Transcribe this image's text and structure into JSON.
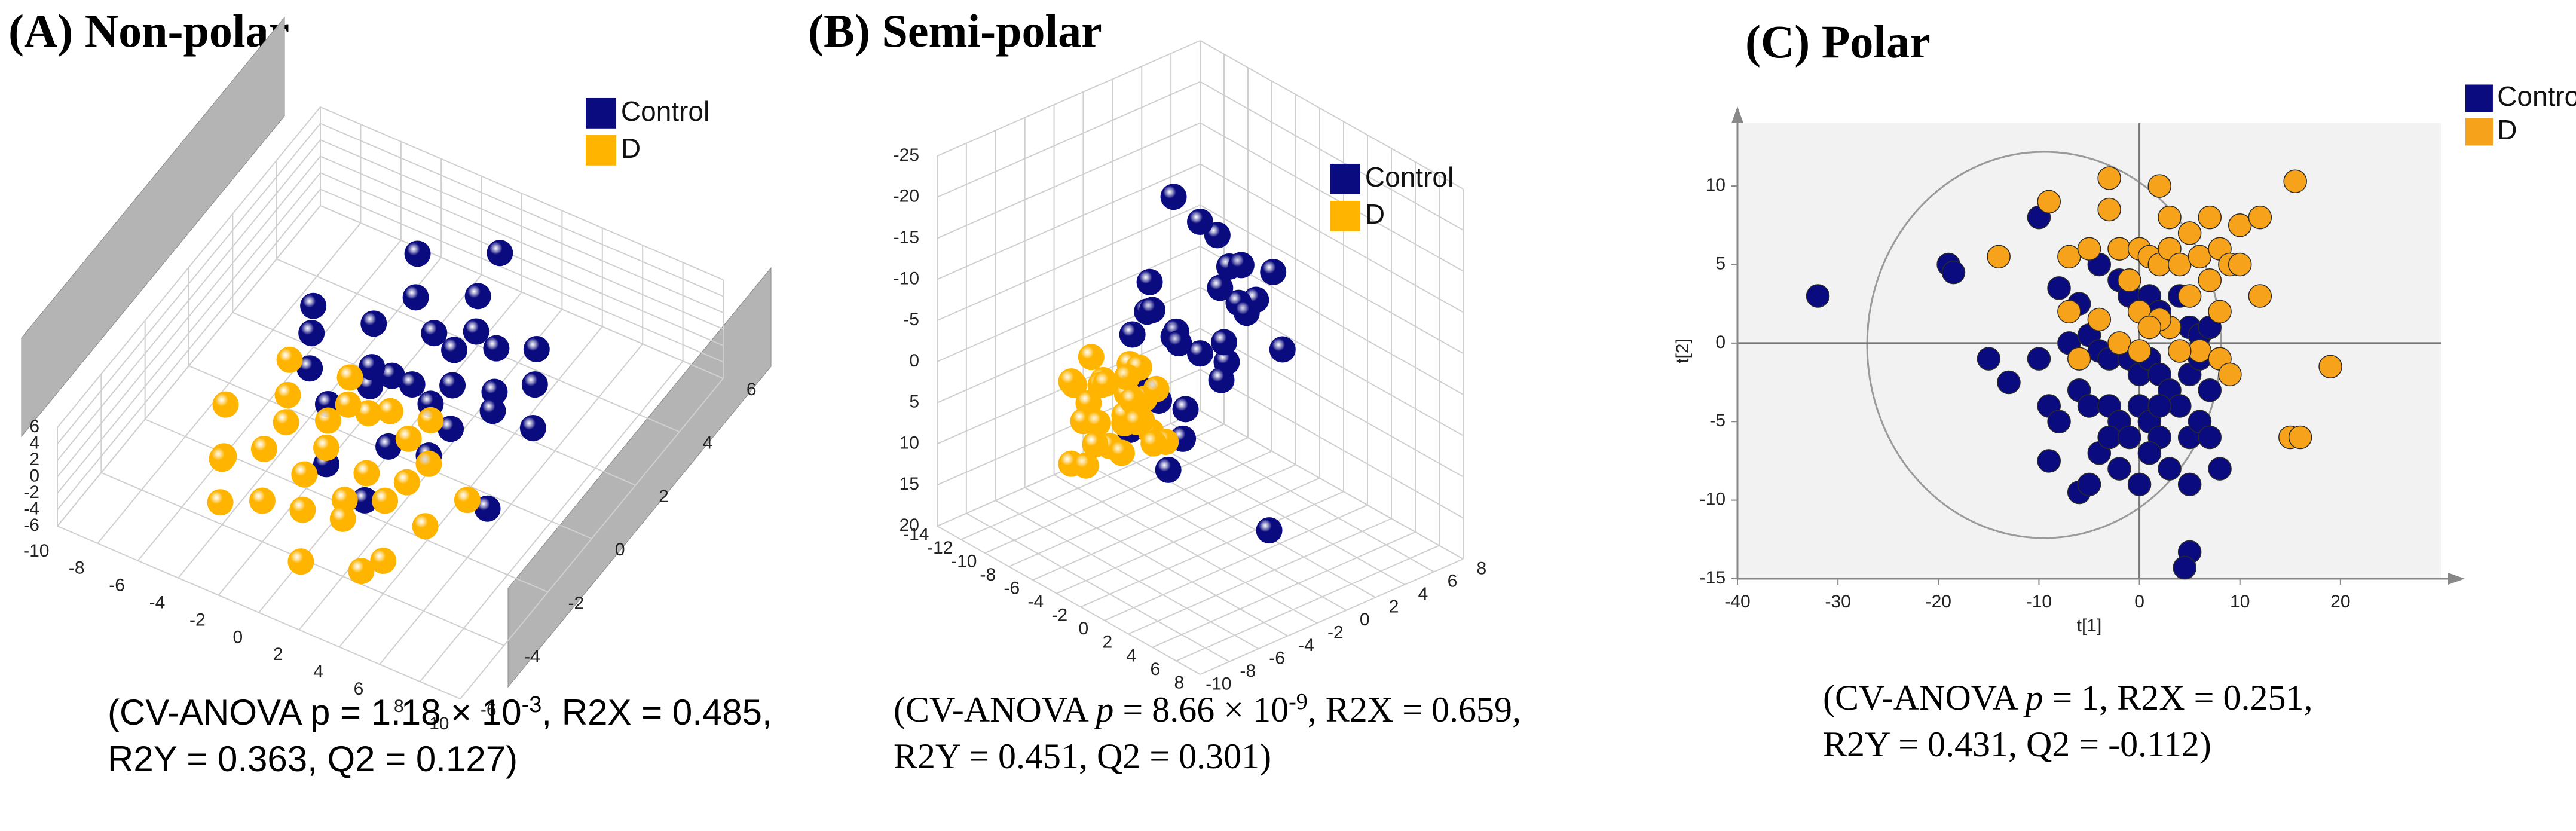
{
  "chart_data": [
    {
      "type": "scatter3d",
      "title": "(A) Non-polar",
      "caption": [
        [
          {
            "text": "(CV-ANOVA p = 1.18 × 10"
          },
          {
            "text": "-3",
            "style": "sup"
          },
          {
            "text": ", R2X = 0.485,"
          }
        ],
        [
          {
            "text": "R2Y = 0.363, Q2 = 0.127)"
          }
        ]
      ],
      "xlim": [
        -10,
        10
      ],
      "xticks": [
        -10,
        -8,
        -6,
        -4,
        -2,
        0,
        2,
        4,
        6,
        8,
        10
      ],
      "ylim": [
        -6,
        6
      ],
      "yticks": [
        -6,
        -4,
        -2,
        0,
        2,
        4,
        6
      ],
      "zlim": [
        -6,
        6
      ],
      "zticks": [
        -6,
        -4,
        -2,
        0,
        2,
        4,
        6
      ],
      "wall_color": "#b4b4b4",
      "series": [
        {
          "name": "Control",
          "color": "#0b0b80",
          "x": [
            -3,
            -2,
            -1,
            0,
            1,
            2,
            3,
            -4,
            -1,
            0,
            2,
            4,
            -2,
            1,
            3,
            -3,
            0,
            2,
            5,
            -5,
            -1,
            1,
            3,
            -2,
            0,
            4,
            6,
            -6,
            2,
            7
          ],
          "y": [
            2,
            3,
            1,
            2,
            3,
            1,
            2,
            0,
            0,
            1,
            0,
            1,
            -1,
            -1,
            0,
            4,
            4,
            3,
            2,
            1,
            -2,
            2,
            -1,
            1,
            5,
            3,
            1,
            2,
            -3,
            -2
          ],
          "z": [
            0,
            1,
            -1,
            2,
            0,
            1,
            -2,
            0,
            1,
            -1,
            2,
            0,
            1,
            -1,
            0,
            2,
            0,
            -1,
            1,
            0,
            -2,
            1,
            0,
            -1,
            2,
            1,
            0,
            -1,
            0,
            1
          ]
        },
        {
          "name": "D",
          "color": "#ffb400",
          "x": [
            -4,
            -3,
            -2,
            -1,
            0,
            1,
            2,
            3,
            -5,
            -3,
            -1,
            1,
            3,
            5,
            -4,
            -2,
            0,
            2,
            4,
            -6,
            -2,
            0,
            2,
            -3,
            1,
            4,
            -1,
            3,
            6,
            -5
          ],
          "y": [
            -1,
            -2,
            -1,
            -2,
            -1,
            -2,
            -1,
            -2,
            -3,
            -3,
            -3,
            -3,
            -3,
            -3,
            -4,
            -4,
            -4,
            -4,
            -4,
            -2,
            0,
            0,
            0,
            -5,
            -5,
            -5,
            -1,
            -1,
            -2,
            0
          ],
          "z": [
            0,
            1,
            -1,
            0,
            2,
            -1,
            1,
            0,
            -2,
            1,
            0,
            -1,
            1,
            0,
            2,
            -1,
            0,
            1,
            -2,
            0,
            1,
            -1,
            0,
            1,
            -2,
            0,
            2,
            -1,
            1,
            0
          ]
        }
      ]
    },
    {
      "type": "scatter3d",
      "title": "(B) Semi-polar",
      "caption": [
        [
          {
            "text": "(CV-ANOVA "
          },
          {
            "text": "p",
            "style": "italic"
          },
          {
            "text": " = 8.66 × 10"
          },
          {
            "text": "-9",
            "style": "sup"
          },
          {
            "text": ", R2X = 0.659,"
          }
        ],
        [
          {
            "text": "R2Y = 0.451, Q2 = 0.301)"
          }
        ]
      ],
      "xlim": [
        -14,
        8
      ],
      "xticks": [
        -14,
        -12,
        -10,
        -8,
        -6,
        -4,
        -2,
        0,
        2,
        4,
        6,
        8
      ],
      "ylim": [
        -10,
        8
      ],
      "yticks": [
        -10,
        -8,
        -6,
        -4,
        -2,
        0,
        2,
        4,
        6,
        8
      ],
      "zlim": [
        20,
        -25
      ],
      "zticks": [
        20,
        15,
        10,
        5,
        0,
        -5,
        -10,
        -15,
        -20,
        -25
      ],
      "series": [
        {
          "name": "Control",
          "color": "#0b0b80",
          "x": [
            -4,
            -3,
            -5,
            -2,
            -6,
            -4,
            -1,
            -3,
            -5,
            -4,
            -2,
            -6,
            -3,
            -4,
            -5,
            -2,
            -1,
            -4,
            -3,
            -6,
            -5,
            -2,
            0,
            -3,
            -4,
            -7,
            -1,
            -4,
            -2,
            4
          ],
          "y": [
            -2,
            -1,
            -3,
            0,
            -2,
            -4,
            -1,
            1,
            -1,
            -3,
            2,
            0,
            -2,
            1,
            -4,
            -3,
            0,
            3,
            -1,
            -3,
            2,
            1,
            -2,
            4,
            -5,
            -1,
            3,
            -2,
            -4,
            -2
          ],
          "z": [
            -5,
            -3,
            -8,
            -2,
            -10,
            0,
            -6,
            -12,
            -4,
            2,
            -8,
            -1,
            3,
            -15,
            -6,
            5,
            -10,
            -4,
            -19,
            1,
            -7,
            -13,
            -3,
            -9,
            4,
            -5,
            -2,
            -22,
            8,
            12
          ]
        },
        {
          "name": "D",
          "color": "#ffb400",
          "x": [
            -3,
            -2,
            -4,
            -1,
            -5,
            -3,
            -2,
            -4,
            -1,
            -3,
            -5,
            -2,
            -6,
            -3,
            -4,
            -1,
            -2,
            -3,
            -5,
            -4,
            -2,
            -3,
            -1,
            -4,
            -6,
            -2,
            -3,
            -5,
            -1,
            -4
          ],
          "y": [
            -6,
            -7,
            -5,
            -6,
            -8,
            -5,
            -7,
            -9,
            -5,
            -6,
            -7,
            -8,
            -6,
            -9,
            -4,
            -7,
            -5,
            -8,
            -6,
            -9,
            -6,
            -4,
            -8,
            -7,
            -5,
            -9,
            -6,
            -4,
            -7,
            -8
          ],
          "z": [
            -2,
            0,
            -4,
            1,
            -3,
            2,
            -1,
            -5,
            3,
            -2,
            0,
            2,
            -4,
            -1,
            1,
            -3,
            4,
            0,
            -2,
            5,
            -6,
            -1,
            2,
            -3,
            0,
            1,
            -4,
            2,
            -1,
            6
          ]
        }
      ]
    },
    {
      "type": "scatter",
      "title": "(C) Polar",
      "caption": [
        [
          {
            "text": "(CV-ANOVA "
          },
          {
            "text": "p",
            "style": "italic"
          },
          {
            "text": " = 1, R2X = 0.251,"
          }
        ],
        [
          {
            "text": "R2Y = 0.431, Q2 = -0.112)"
          }
        ]
      ],
      "xlabel": "t[1]",
      "ylabel": "t[2]",
      "xlim": [
        -40,
        30
      ],
      "xticks": [
        -40,
        -30,
        -20,
        -10,
        0,
        10,
        20
      ],
      "ylim": [
        -15,
        14
      ],
      "yticks": [
        -15,
        -10,
        -5,
        0,
        5,
        10
      ],
      "series": [
        {
          "name": "Control",
          "color": "#0b0b80",
          "x": [
            -32,
            -19,
            -18.5,
            -10,
            -8,
            -6,
            -4,
            -2,
            -1,
            1,
            2,
            4,
            5,
            6,
            7,
            -7,
            -5,
            -4,
            -3,
            -1,
            0,
            1,
            2,
            3,
            5,
            6,
            7,
            -15,
            -13,
            -10,
            -9,
            -8,
            -6,
            -5,
            -3,
            -2,
            0,
            1,
            2,
            4,
            5,
            6,
            -9,
            -6,
            -5,
            -4,
            -2,
            0,
            1,
            3,
            5,
            8,
            5,
            4.5,
            -3,
            -1,
            2,
            7
          ],
          "y": [
            3,
            5,
            4.5,
            8,
            3.5,
            2.5,
            5,
            4,
            3,
            3,
            2,
            3,
            1,
            0.5,
            1,
            0,
            0.5,
            -0.5,
            -1,
            -1,
            -2,
            -1,
            -2,
            -3,
            -2,
            -1,
            -3,
            -1,
            -2.5,
            -1,
            -4,
            -5,
            -3,
            -4,
            -4,
            -5,
            -4,
            -5,
            -6,
            -4,
            -6,
            -5,
            -7.5,
            -9.5,
            -9,
            -7,
            -8,
            -9,
            -7,
            -8,
            -9,
            -8,
            -13.3,
            -14.3,
            -6,
            -6,
            -4,
            -6
          ]
        },
        {
          "name": "D",
          "color": "#f7a21b",
          "x": [
            -14,
            -9,
            -7,
            -5,
            -3,
            -2,
            0,
            1,
            2,
            3,
            4,
            5,
            6,
            7,
            8,
            9,
            10,
            12,
            3,
            7,
            -3,
            2,
            -1,
            0,
            3,
            2,
            5,
            8,
            12,
            6,
            8,
            9,
            -4,
            -2,
            0,
            15.5,
            19,
            15,
            16,
            -6,
            1,
            4,
            -7,
            10
          ],
          "y": [
            5.5,
            9,
            5.5,
            6,
            8.5,
            6,
            6,
            5.5,
            5,
            6,
            5,
            7,
            5.5,
            4,
            6,
            5,
            7.5,
            8,
            8,
            8,
            10.5,
            10,
            4,
            2,
            1,
            1.5,
            3,
            2,
            3,
            -0.5,
            -1,
            -2,
            1.5,
            0,
            -0.5,
            10.3,
            -1.5,
            -6,
            -6,
            -1,
            1,
            -0.5,
            2,
            5
          ]
        }
      ]
    }
  ]
}
